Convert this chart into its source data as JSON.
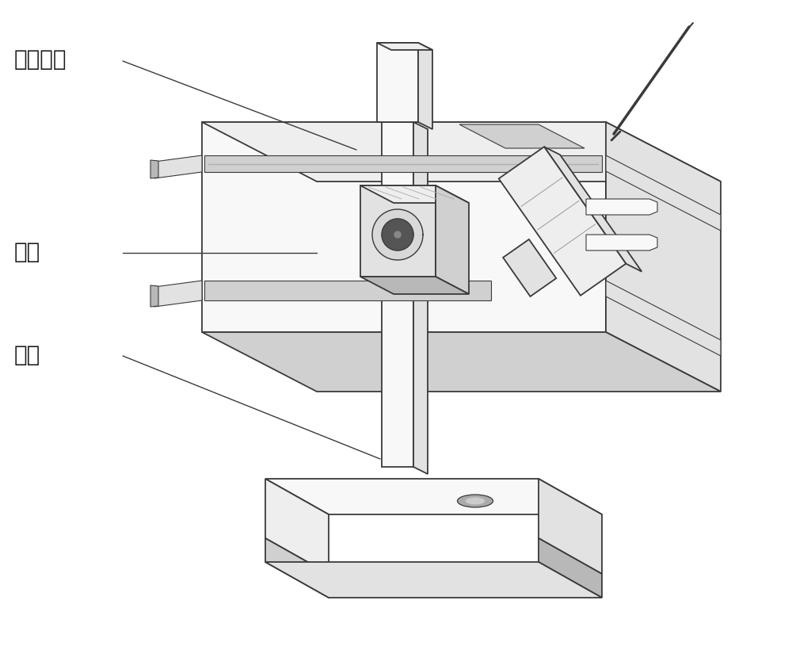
{
  "background_color": "#ffffff",
  "line_color": "#3a3a3a",
  "fill_white": "#f8f8f8",
  "fill_light": "#efefef",
  "fill_mid": "#e0e0e0",
  "fill_dark": "#cccccc",
  "labels": {
    "label1": "测量模块",
    "label2": "支架",
    "label3": "量块"
  },
  "label_positions_ax": {
    "label1": [
      0.02,
      0.92
    ],
    "label2": [
      0.02,
      0.62
    ],
    "label3": [
      0.02,
      0.42
    ]
  },
  "label_fontsize": 20,
  "figsize": [
    10.0,
    8.45
  ],
  "dpi": 100
}
